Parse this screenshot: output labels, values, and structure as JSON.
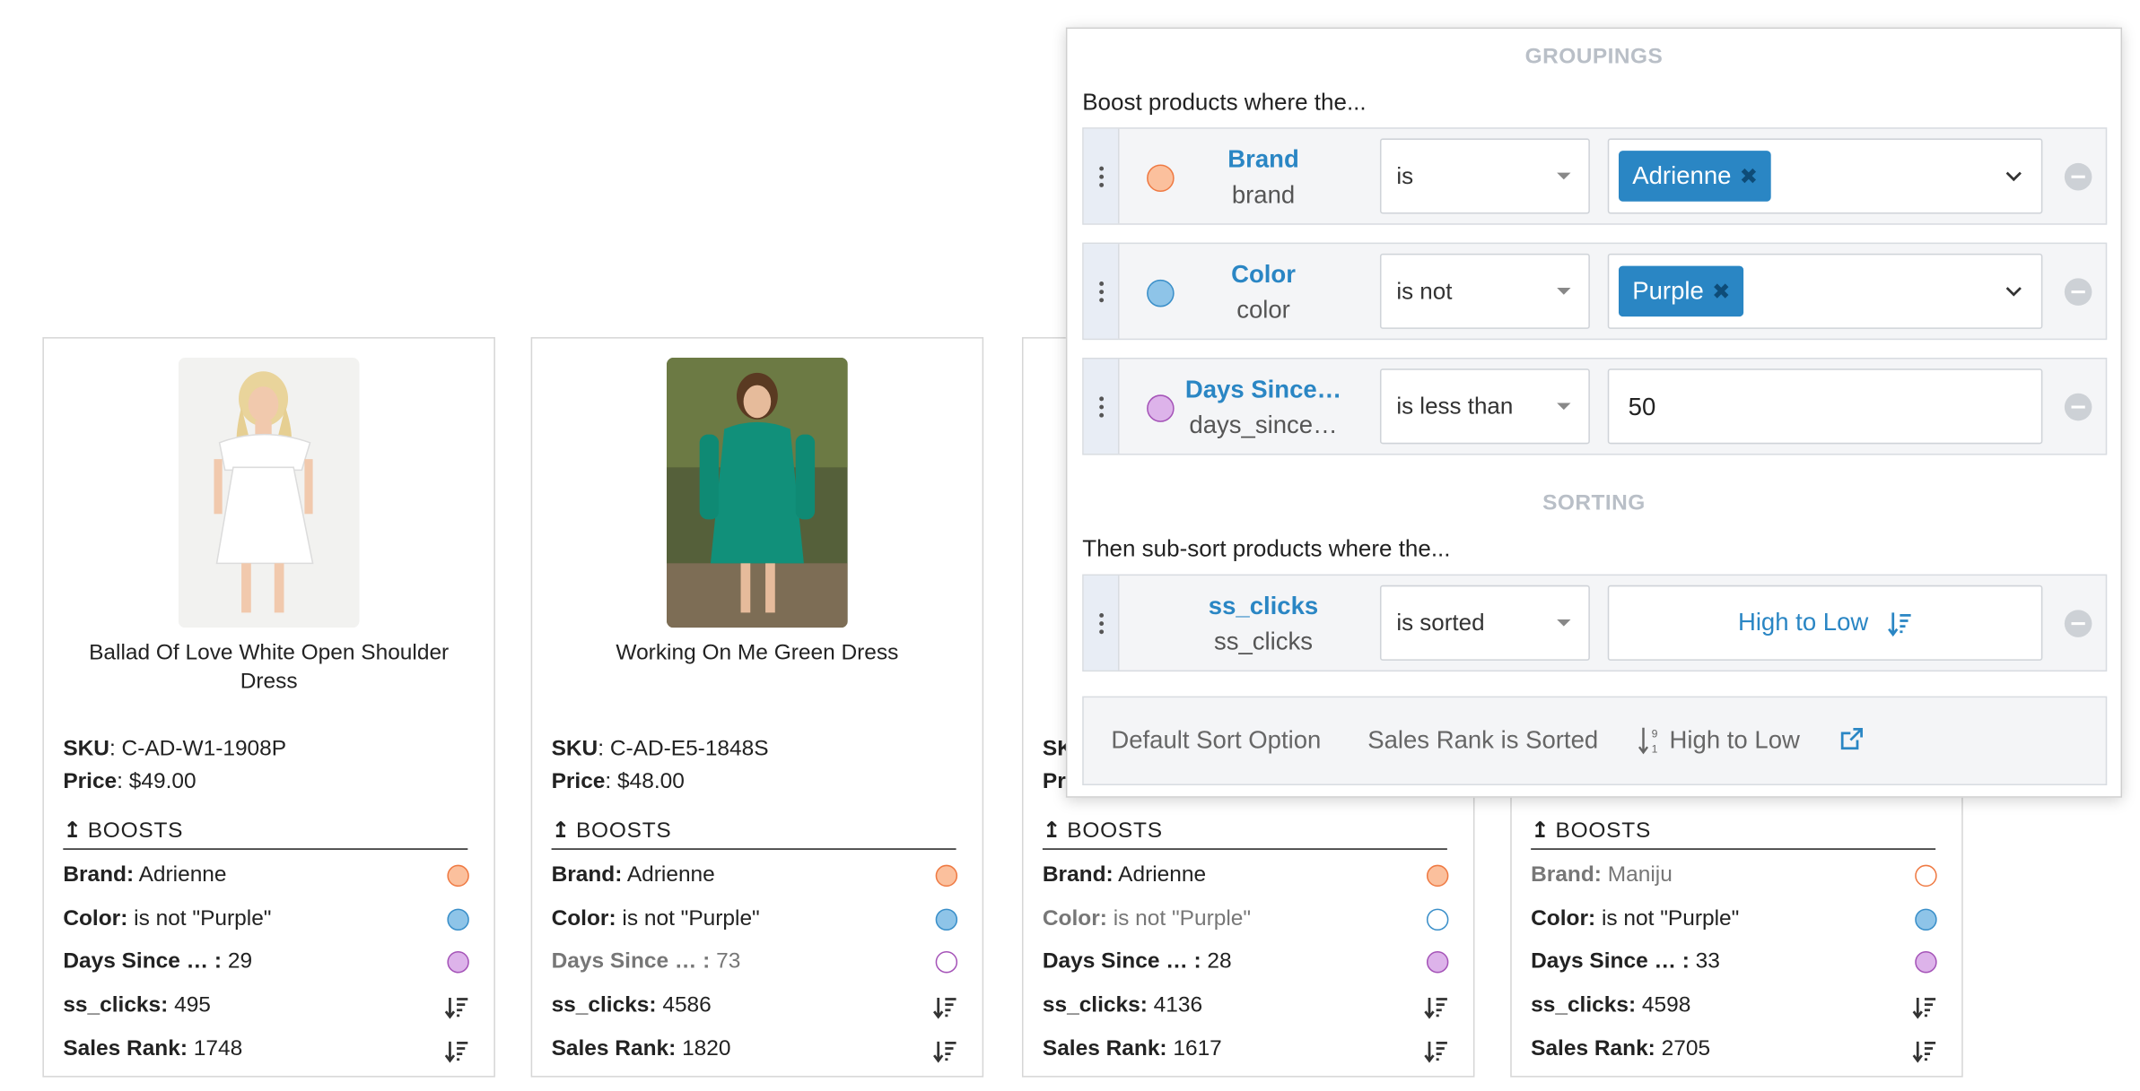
{
  "cards": [
    {
      "title": "Ballad Of Love White Open Shoulder Dress",
      "sku_label": "SKU",
      "sku": ": C-AD-W1-1908P",
      "price_label": "Price",
      "price": ": $49.00",
      "boosts_label": "BOOSTS",
      "rows": [
        {
          "label": "Brand:",
          "value": " Adrienne"
        },
        {
          "label": "Color:",
          "value": " is not \"Purple\""
        },
        {
          "label": "Days Since … :",
          "value": " 29"
        },
        {
          "label": "ss_clicks:",
          "value": " 495"
        },
        {
          "label": "Sales Rank:",
          "value": " 1748"
        }
      ]
    },
    {
      "title": "Working On Me Green Dress",
      "sku_label": "SKU",
      "sku": ": C-AD-E5-1848S",
      "price_label": "Price",
      "price": ": $48.00",
      "boosts_label": "BOOSTS",
      "rows": [
        {
          "label": "Brand:",
          "value": " Adrienne"
        },
        {
          "label": "Color:",
          "value": " is not \"Purple\""
        },
        {
          "label": "Days Since … :",
          "value": " 73"
        },
        {
          "label": "ss_clicks:",
          "value": " 4586"
        },
        {
          "label": "Sales Rank:",
          "value": " 1820"
        }
      ]
    },
    {
      "sku_label": "SK",
      "price_label": "Pr",
      "boosts_label": "BOOSTS",
      "rows": [
        {
          "label": "Brand:",
          "value": " Adrienne"
        },
        {
          "label": "Color:",
          "value": " is not \"Purple\""
        },
        {
          "label": "Days Since … :",
          "value": " 28"
        },
        {
          "label": "ss_clicks:",
          "value": " 4136"
        },
        {
          "label": "Sales Rank:",
          "value": " 1617"
        }
      ]
    },
    {
      "boosts_label": "BOOSTS",
      "rows": [
        {
          "label": "Brand:",
          "value": " Maniju"
        },
        {
          "label": "Color:",
          "value": " is not \"Purple\""
        },
        {
          "label": "Days Since … :",
          "value": " 33"
        },
        {
          "label": "ss_clicks:",
          "value": " 4598"
        },
        {
          "label": "Sales Rank:",
          "value": " 2705"
        }
      ]
    }
  ],
  "panel": {
    "groupings_heading": "GROUPINGS",
    "groupings_lead": "Boost products where the...",
    "rules": [
      {
        "name": "Brand",
        "key": "brand",
        "operator": "is",
        "chip": "Adrienne",
        "color": "orange"
      },
      {
        "name": "Color",
        "key": "color",
        "operator": "is not",
        "chip": "Purple",
        "color": "blue"
      },
      {
        "name": "Days Since…",
        "key": "days_since…",
        "operator": "is less than",
        "value": "50",
        "color": "purple"
      }
    ],
    "sorting_heading": "SORTING",
    "sorting_lead": "Then sub-sort products where the...",
    "sort_rule": {
      "name": "ss_clicks",
      "key": "ss_clicks",
      "operator": "is sorted",
      "direction": "High to Low"
    },
    "footer": {
      "label": "Default Sort Option",
      "field": "Sales Rank is Sorted",
      "direction": "High to Low"
    }
  },
  "colors": {
    "accent": "#2a86c4",
    "orange": "#ef7a43",
    "blue": "#3a8fc9",
    "purple": "#a554b8"
  },
  "icons": [
    "drag-handle-icon",
    "chevron-down-icon",
    "remove-icon",
    "sort-desc-icon",
    "sort-numeric-icon",
    "external-link-icon",
    "boost-arrow-icon"
  ]
}
